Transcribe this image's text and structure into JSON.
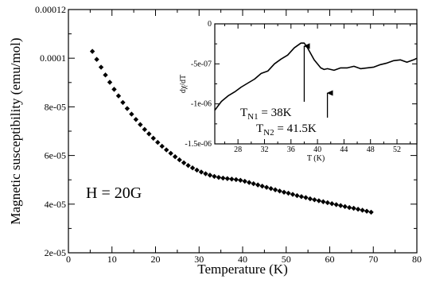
{
  "chart_data": [
    {
      "type": "scatter",
      "xlabel": "Temperature (K)",
      "ylabel": "Magnetic susceptibility (emu/mol)",
      "xlim": [
        0,
        80
      ],
      "ylim": [
        2e-05,
        0.00012
      ],
      "x_ticks": [
        0,
        10,
        20,
        30,
        40,
        50,
        60,
        70,
        80
      ],
      "x_tick_labels": [
        "0",
        "10",
        "20",
        "30",
        "40",
        "50",
        "60",
        "70",
        "80"
      ],
      "y_ticks": [
        2e-05,
        4e-05,
        6e-05,
        8e-05,
        0.0001,
        0.00012
      ],
      "y_tick_labels": [
        "2e-05",
        "4e-05",
        "6e-05",
        "8e-05",
        "0.0001",
        "0.00012"
      ],
      "annotation": "H = 20G",
      "marker": "diamond",
      "color": "#000000",
      "x": [
        5.5,
        6.5,
        7.5,
        8.5,
        9.5,
        10.5,
        11.5,
        12.5,
        13.5,
        14.5,
        15.5,
        16.5,
        17.5,
        18.5,
        19.5,
        20.5,
        21.5,
        22.5,
        23.5,
        24.5,
        25.5,
        26.5,
        27.5,
        28.5,
        29.5,
        30.5,
        31.5,
        32.5,
        33.5,
        34.5,
        35.5,
        36.5,
        37.5,
        38.5,
        39.5,
        40.5,
        41.5,
        42.5,
        43.5,
        44.5,
        45.5,
        46.5,
        47.5,
        48.5,
        49.5,
        50.5,
        51.5,
        52.5,
        53.5,
        54.5,
        55.5,
        56.5,
        57.5,
        58.5,
        59.5,
        60.5,
        61.5,
        62.5,
        63.5,
        64.5,
        65.5,
        66.5,
        67.5,
        68.5,
        69.5
      ],
      "y": [
        0.0001028,
        9.95e-05,
        9.63e-05,
        9.31e-05,
        9.01e-05,
        8.72e-05,
        8.45e-05,
        8.18e-05,
        7.93e-05,
        7.7e-05,
        7.48e-05,
        7.27e-05,
        7.07e-05,
        6.89e-05,
        6.71e-05,
        6.54e-05,
        6.38e-05,
        6.23e-05,
        6.09e-05,
        5.95e-05,
        5.82e-05,
        5.7e-05,
        5.59e-05,
        5.49e-05,
        5.4e-05,
        5.32e-05,
        5.25e-05,
        5.19e-05,
        5.14e-05,
        5.1e-05,
        5.07e-05,
        5.05e-05,
        5.03e-05,
        5.01e-05,
        4.98e-05,
        4.94e-05,
        4.89e-05,
        4.84e-05,
        4.79e-05,
        4.74e-05,
        4.69e-05,
        4.64e-05,
        4.59e-05,
        4.54e-05,
        4.49e-05,
        4.45e-05,
        4.4e-05,
        4.35e-05,
        4.31e-05,
        4.27e-05,
        4.22e-05,
        4.18e-05,
        4.14e-05,
        4.1e-05,
        4.06e-05,
        4.02e-05,
        3.98e-05,
        3.94e-05,
        3.9e-05,
        3.86e-05,
        3.83e-05,
        3.79e-05,
        3.75e-05,
        3.71e-05,
        3.67e-05
      ]
    },
    {
      "type": "line",
      "xlabel": "T (K)",
      "ylabel": "dχ/dT",
      "xlim": [
        24.5,
        55
      ],
      "ylim": [
        -1.5e-06,
        0
      ],
      "x_ticks": [
        28,
        32,
        36,
        40,
        44,
        48,
        52
      ],
      "x_tick_labels": [
        "28",
        "32",
        "36",
        "40",
        "44",
        "48",
        "52"
      ],
      "y_ticks": [
        0,
        -5e-07,
        -1e-06,
        -1.5e-06
      ],
      "y_tick_labels": [
        "0",
        "-5e-07",
        "-1e-06",
        "-1.5e-06"
      ],
      "color": "#000000",
      "x": [
        24.5,
        25.5,
        26.5,
        27.5,
        28.5,
        29.5,
        30.5,
        31.5,
        32.5,
        33.5,
        34.5,
        35.5,
        36.5,
        37.5,
        38.0,
        38.5,
        39.5,
        40.5,
        41.0,
        41.5,
        42.5,
        43.5,
        44.5,
        45.5,
        46.5,
        47.5,
        48.5,
        49.5,
        50.5,
        51.5,
        52.5,
        53.5,
        54.5,
        55.0
      ],
      "y": [
        -1.08e-06,
        -9.7e-07,
        -9e-07,
        -8.5e-07,
        -7.9e-07,
        -7.4e-07,
        -6.9e-07,
        -6.2e-07,
        -5.9e-07,
        -5e-07,
        -4.4e-07,
        -3.9e-07,
        -3e-07,
        -2.4e-07,
        -2.4e-07,
        -3e-07,
        -4.5e-07,
        -5.5e-07,
        -5.7e-07,
        -5.6e-07,
        -5.8e-07,
        -5.5e-07,
        -5.5e-07,
        -5.3e-07,
        -5.6e-07,
        -5.5e-07,
        -5.4e-07,
        -5.1e-07,
        -4.9e-07,
        -4.6e-07,
        -4.5e-07,
        -4.8e-07,
        -4.5e-07,
        -4.3e-07
      ],
      "annotations": [
        {
          "base": "T",
          "sub": "N1",
          "rest": " = 38K",
          "x": 38
        },
        {
          "base": "T",
          "sub": "N2",
          "rest": " = 41.5K",
          "x": 41.5
        }
      ]
    }
  ]
}
